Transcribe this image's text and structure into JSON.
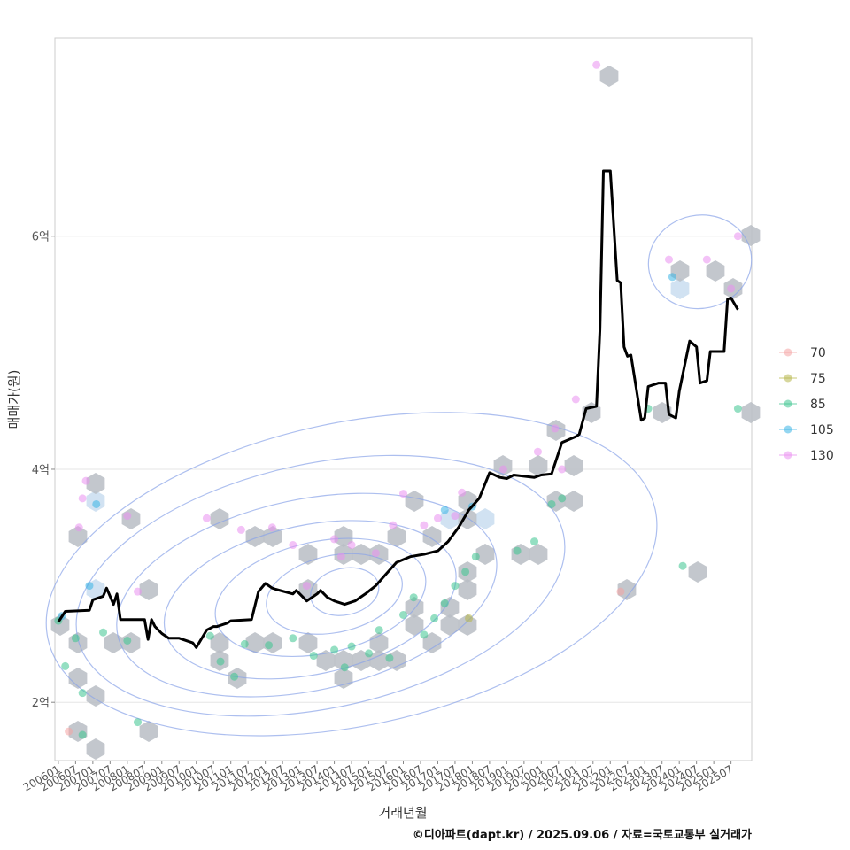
{
  "chart_data": {
    "type": "scatter",
    "title": "",
    "xlabel": "거래년월",
    "ylabel": "매매가(원)",
    "caption": "©디아파트(dapt.kr) / 2025.09.06 / 자료=국토교통부 실거래가",
    "y_range": [
      1.5,
      7.7
    ],
    "y_ticks": [
      {
        "value": 2,
        "label": "2억"
      },
      {
        "value": 4,
        "label": "4억"
      },
      {
        "value": 6,
        "label": "6억"
      }
    ],
    "x_range": [
      2005.9,
      2026.1
    ],
    "x_ticks": [
      {
        "value": 2006.0,
        "label": "200601"
      },
      {
        "value": 2006.5,
        "label": "200607"
      },
      {
        "value": 2007.0,
        "label": "200701"
      },
      {
        "value": 2007.5,
        "label": "200707"
      },
      {
        "value": 2008.0,
        "label": "200801"
      },
      {
        "value": 2008.5,
        "label": "200807"
      },
      {
        "value": 2009.0,
        "label": "200901"
      },
      {
        "value": 2009.5,
        "label": "200907"
      },
      {
        "value": 2010.0,
        "label": "201001"
      },
      {
        "value": 2010.5,
        "label": "201007"
      },
      {
        "value": 2011.0,
        "label": "201101"
      },
      {
        "value": 2011.5,
        "label": "201107"
      },
      {
        "value": 2012.0,
        "label": "201201"
      },
      {
        "value": 2012.5,
        "label": "201207"
      },
      {
        "value": 2013.0,
        "label": "201301"
      },
      {
        "value": 2013.5,
        "label": "201307"
      },
      {
        "value": 2014.0,
        "label": "201401"
      },
      {
        "value": 2014.5,
        "label": "201407"
      },
      {
        "value": 2015.0,
        "label": "201501"
      },
      {
        "value": 2015.5,
        "label": "201507"
      },
      {
        "value": 2016.0,
        "label": "201601"
      },
      {
        "value": 2016.5,
        "label": "201607"
      },
      {
        "value": 2017.0,
        "label": "201701"
      },
      {
        "value": 2017.5,
        "label": "201707"
      },
      {
        "value": 2018.0,
        "label": "201801"
      },
      {
        "value": 2018.5,
        "label": "201807"
      },
      {
        "value": 2019.0,
        "label": "201901"
      },
      {
        "value": 2019.5,
        "label": "201907"
      },
      {
        "value": 2020.0,
        "label": "202001"
      },
      {
        "value": 2020.5,
        "label": "202007"
      },
      {
        "value": 2021.0,
        "label": "202101"
      },
      {
        "value": 2021.5,
        "label": "202107"
      },
      {
        "value": 2022.0,
        "label": "202201"
      },
      {
        "value": 2022.5,
        "label": "202207"
      },
      {
        "value": 2023.0,
        "label": "202301"
      },
      {
        "value": 2023.5,
        "label": "202307"
      },
      {
        "value": 2024.0,
        "label": "202401"
      },
      {
        "value": 2024.5,
        "label": "202407"
      },
      {
        "value": 2025.0,
        "label": "202501"
      },
      {
        "value": 2025.5,
        "label": "202507"
      }
    ],
    "legend": [
      {
        "label": "70",
        "color": "#f4a3a3"
      },
      {
        "label": "75",
        "color": "#b7b64a"
      },
      {
        "label": "85",
        "color": "#3cc48f"
      },
      {
        "label": "105",
        "color": "#3bb5e6"
      },
      {
        "label": "130",
        "color": "#e98ff0"
      }
    ],
    "series_median_line": {
      "name": "median",
      "x": [
        2006.0,
        2006.2,
        2006.9,
        2007.0,
        2007.3,
        2007.4,
        2007.6,
        2007.7,
        2007.8,
        2008.5,
        2008.6,
        2008.7,
        2008.8,
        2008.9,
        2009.0,
        2009.2,
        2009.5,
        2009.9,
        2010.0,
        2010.3,
        2010.5,
        2010.6,
        2010.9,
        2011.0,
        2011.6,
        2011.8,
        2012.0,
        2012.2,
        2012.3,
        2012.8,
        2012.9,
        2013.2,
        2013.5,
        2013.6,
        2013.8,
        2014.0,
        2014.3,
        2014.6,
        2014.9,
        2015.2,
        2015.5,
        2015.8,
        2016.2,
        2016.6,
        2017.0,
        2017.3,
        2017.6,
        2017.9,
        2018.2,
        2018.5,
        2018.8,
        2019.0,
        2019.2,
        2019.8,
        2020.0,
        2020.3,
        2020.6,
        2021.0,
        2021.1,
        2021.3,
        2021.6,
        2021.7,
        2021.8,
        2022.0,
        2022.2,
        2022.3,
        2022.4,
        2022.5,
        2022.6,
        2022.9,
        2023.0,
        2023.1,
        2023.3,
        2023.4,
        2023.6,
        2023.7,
        2023.9,
        2024.0,
        2024.3,
        2024.5,
        2024.6,
        2024.8,
        2024.9,
        2025.0,
        2025.3,
        2025.4,
        2025.5,
        2025.7
      ],
      "y": [
        2.69,
        2.78,
        2.79,
        2.88,
        2.91,
        2.98,
        2.84,
        2.93,
        2.71,
        2.71,
        2.54,
        2.71,
        2.65,
        2.62,
        2.59,
        2.55,
        2.55,
        2.51,
        2.47,
        2.62,
        2.65,
        2.65,
        2.68,
        2.7,
        2.71,
        2.95,
        3.02,
        2.98,
        2.97,
        2.93,
        2.96,
        2.87,
        2.93,
        2.96,
        2.9,
        2.87,
        2.84,
        2.87,
        2.93,
        3.0,
        3.1,
        3.2,
        3.25,
        3.27,
        3.3,
        3.38,
        3.5,
        3.65,
        3.75,
        3.97,
        3.93,
        3.92,
        3.95,
        3.93,
        3.95,
        3.96,
        4.23,
        4.28,
        4.3,
        4.52,
        4.54,
        5.2,
        6.56,
        6.56,
        5.62,
        5.6,
        5.05,
        4.97,
        4.98,
        4.42,
        4.44,
        4.71,
        4.73,
        4.74,
        4.74,
        4.47,
        4.44,
        4.67,
        5.1,
        5.05,
        4.74,
        4.76,
        5.01,
        5.01,
        5.01,
        5.46,
        5.47,
        5.37
      ]
    },
    "density_contours": "kernel density contour lines (blue)",
    "hexbins": "grey hexagonal bins of transaction counts",
    "points": [
      {
        "x": 2006.3,
        "y": 1.75,
        "size_class": "70"
      },
      {
        "x": 2022.3,
        "y": 2.95,
        "size_class": "70"
      },
      {
        "x": 2017.9,
        "y": 2.72,
        "size_class": "75"
      },
      {
        "x": 2006.0,
        "y": 2.7,
        "size_class": "85"
      },
      {
        "x": 2006.2,
        "y": 2.31,
        "size_class": "85"
      },
      {
        "x": 2006.5,
        "y": 2.55,
        "size_class": "85"
      },
      {
        "x": 2006.7,
        "y": 2.08,
        "size_class": "85"
      },
      {
        "x": 2006.7,
        "y": 1.72,
        "size_class": "85"
      },
      {
        "x": 2007.3,
        "y": 2.6,
        "size_class": "85"
      },
      {
        "x": 2008.0,
        "y": 2.53,
        "size_class": "85"
      },
      {
        "x": 2008.3,
        "y": 1.83,
        "size_class": "85"
      },
      {
        "x": 2010.4,
        "y": 2.57,
        "size_class": "85"
      },
      {
        "x": 2010.7,
        "y": 2.35,
        "size_class": "85"
      },
      {
        "x": 2011.1,
        "y": 2.22,
        "size_class": "85"
      },
      {
        "x": 2011.4,
        "y": 2.5,
        "size_class": "85"
      },
      {
        "x": 2012.1,
        "y": 2.49,
        "size_class": "85"
      },
      {
        "x": 2012.8,
        "y": 2.55,
        "size_class": "85"
      },
      {
        "x": 2013.4,
        "y": 2.4,
        "size_class": "85"
      },
      {
        "x": 2014.0,
        "y": 2.45,
        "size_class": "85"
      },
      {
        "x": 2014.3,
        "y": 2.3,
        "size_class": "85"
      },
      {
        "x": 2014.5,
        "y": 2.48,
        "size_class": "85"
      },
      {
        "x": 2015.0,
        "y": 2.42,
        "size_class": "85"
      },
      {
        "x": 2015.3,
        "y": 2.62,
        "size_class": "85"
      },
      {
        "x": 2015.6,
        "y": 2.38,
        "size_class": "85"
      },
      {
        "x": 2016.0,
        "y": 2.75,
        "size_class": "85"
      },
      {
        "x": 2016.3,
        "y": 2.9,
        "size_class": "85"
      },
      {
        "x": 2016.6,
        "y": 2.58,
        "size_class": "85"
      },
      {
        "x": 2016.9,
        "y": 2.72,
        "size_class": "85"
      },
      {
        "x": 2017.2,
        "y": 2.85,
        "size_class": "85"
      },
      {
        "x": 2017.5,
        "y": 3.0,
        "size_class": "85"
      },
      {
        "x": 2017.8,
        "y": 3.12,
        "size_class": "85"
      },
      {
        "x": 2018.1,
        "y": 3.25,
        "size_class": "85"
      },
      {
        "x": 2019.3,
        "y": 3.3,
        "size_class": "85"
      },
      {
        "x": 2019.8,
        "y": 3.38,
        "size_class": "85"
      },
      {
        "x": 2020.3,
        "y": 3.7,
        "size_class": "85"
      },
      {
        "x": 2020.6,
        "y": 3.75,
        "size_class": "85"
      },
      {
        "x": 2023.1,
        "y": 4.52,
        "size_class": "85"
      },
      {
        "x": 2024.1,
        "y": 3.17,
        "size_class": "85"
      },
      {
        "x": 2025.7,
        "y": 4.52,
        "size_class": "85"
      },
      {
        "x": 2006.1,
        "y": 2.74,
        "size_class": "105"
      },
      {
        "x": 2006.9,
        "y": 3.0,
        "size_class": "105"
      },
      {
        "x": 2007.1,
        "y": 3.7,
        "size_class": "105"
      },
      {
        "x": 2017.2,
        "y": 3.65,
        "size_class": "105"
      },
      {
        "x": 2018.0,
        "y": 3.68,
        "size_class": "105"
      },
      {
        "x": 2023.8,
        "y": 5.65,
        "size_class": "105"
      },
      {
        "x": 2006.7,
        "y": 3.75,
        "size_class": "130"
      },
      {
        "x": 2006.8,
        "y": 3.9,
        "size_class": "130"
      },
      {
        "x": 2006.6,
        "y": 3.5,
        "size_class": "130"
      },
      {
        "x": 2008.0,
        "y": 3.6,
        "size_class": "130"
      },
      {
        "x": 2008.3,
        "y": 2.95,
        "size_class": "130"
      },
      {
        "x": 2010.3,
        "y": 3.58,
        "size_class": "130"
      },
      {
        "x": 2011.3,
        "y": 3.48,
        "size_class": "130"
      },
      {
        "x": 2012.2,
        "y": 3.5,
        "size_class": "130"
      },
      {
        "x": 2012.8,
        "y": 3.35,
        "size_class": "130"
      },
      {
        "x": 2013.2,
        "y": 3.0,
        "size_class": "130"
      },
      {
        "x": 2014.0,
        "y": 3.4,
        "size_class": "130"
      },
      {
        "x": 2014.2,
        "y": 3.25,
        "size_class": "130"
      },
      {
        "x": 2014.5,
        "y": 3.35,
        "size_class": "130"
      },
      {
        "x": 2015.2,
        "y": 3.28,
        "size_class": "130"
      },
      {
        "x": 2015.7,
        "y": 3.52,
        "size_class": "130"
      },
      {
        "x": 2016.0,
        "y": 3.79,
        "size_class": "130"
      },
      {
        "x": 2016.6,
        "y": 3.52,
        "size_class": "130"
      },
      {
        "x": 2017.0,
        "y": 3.58,
        "size_class": "130"
      },
      {
        "x": 2017.5,
        "y": 3.6,
        "size_class": "130"
      },
      {
        "x": 2017.7,
        "y": 3.8,
        "size_class": "130"
      },
      {
        "x": 2018.9,
        "y": 4.0,
        "size_class": "130"
      },
      {
        "x": 2019.9,
        "y": 4.15,
        "size_class": "130"
      },
      {
        "x": 2020.4,
        "y": 4.35,
        "size_class": "130"
      },
      {
        "x": 2020.6,
        "y": 4.0,
        "size_class": "130"
      },
      {
        "x": 2021.0,
        "y": 4.6,
        "size_class": "130"
      },
      {
        "x": 2021.6,
        "y": 7.47,
        "size_class": "130"
      },
      {
        "x": 2023.7,
        "y": 5.8,
        "size_class": "130"
      },
      {
        "x": 2024.8,
        "y": 5.8,
        "size_class": "130"
      },
      {
        "x": 2025.5,
        "y": 5.55,
        "size_class": "130"
      },
      {
        "x": 2025.7,
        "y": 6.0,
        "size_class": "130"
      }
    ]
  }
}
